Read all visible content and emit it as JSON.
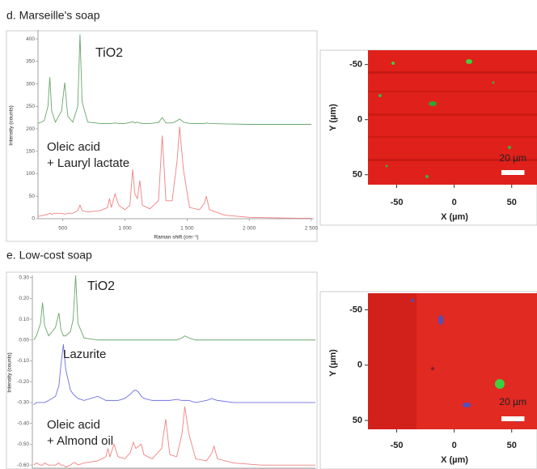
{
  "chart_data": [
    {
      "type": "line",
      "title": "d. Marseille's soap",
      "xlabel": "Raman shift (cm⁻¹)",
      "ylabel": "Intensity (counts)",
      "annotations": [
        "TiO2",
        "Oleic acid",
        "+ Lauryl lactate"
      ],
      "xlim": [
        300,
        2520
      ],
      "xticks": [
        500,
        {
          "value": 1000,
          "label": "1 000"
        },
        {
          "value": 1500,
          "label": "1 500"
        },
        {
          "value": 2000,
          "label": "2 000"
        },
        {
          "value": 2500,
          "label": "2 500"
        }
      ],
      "ylim": [
        0,
        420
      ],
      "yticks": [
        0,
        50,
        100,
        150,
        200,
        250,
        300,
        350,
        400
      ],
      "x": [
        300,
        350,
        380,
        395,
        410,
        440,
        490,
        515,
        540,
        580,
        620,
        638,
        655,
        700,
        800,
        860,
        875,
        890,
        920,
        950,
        1000,
        1040,
        1062,
        1080,
        1100,
        1120,
        1140,
        1200,
        1270,
        1300,
        1330,
        1380,
        1420,
        1440,
        1470,
        1520,
        1600,
        1640,
        1655,
        1680,
        1800,
        2000,
        2200,
        2400,
        2500
      ],
      "series": [
        {
          "color": "#6aa56a",
          "values": [
            212,
            218,
            250,
            315,
            240,
            215,
            240,
            303,
            228,
            215,
            250,
            410,
            260,
            215,
            212,
            212,
            212,
            212,
            213,
            212,
            212,
            214,
            216,
            213,
            215,
            213,
            212,
            212,
            214,
            225,
            213,
            213,
            218,
            222,
            215,
            212,
            212,
            212,
            213,
            212,
            211,
            210,
            210,
            210,
            210
          ]
        },
        {
          "color": "#f08080",
          "values": [
            5,
            8,
            10,
            12,
            10,
            12,
            12,
            10,
            12,
            12,
            18,
            30,
            18,
            15,
            18,
            25,
            45,
            25,
            55,
            30,
            20,
            30,
            110,
            55,
            45,
            85,
            30,
            22,
            40,
            185,
            40,
            40,
            130,
            205,
            110,
            25,
            20,
            35,
            50,
            20,
            8,
            3,
            2,
            1,
            1
          ]
        }
      ]
    },
    {
      "type": "map",
      "xlabel": "X (µm)",
      "ylabel": "Y (µm)",
      "xlim": [
        -75,
        72
      ],
      "xticks": [
        -50,
        0,
        50
      ],
      "ylim": [
        -63,
        59
      ],
      "yticks": [
        -50,
        0,
        50
      ],
      "scale_bar": {
        "value": 20,
        "label": "20 µm"
      }
    },
    {
      "type": "line",
      "title": "e. Low-cost soap",
      "ylabel": "Intensity (counts)",
      "annotations": [
        "TiO2",
        "Lazurite",
        "Oleic acid",
        "+ Almond oil"
      ],
      "xlim": [
        320,
        2400
      ],
      "ylim": [
        -0.615,
        0.31
      ],
      "yticks": [
        {
          "value": 0.3,
          "label": "0.30"
        },
        {
          "value": 0.2,
          "label": "0.20"
        },
        {
          "value": 0.1,
          "label": "0.10"
        },
        {
          "value": 0,
          "label": "0.00"
        },
        {
          "value": -0.1,
          "label": "-0.10"
        },
        {
          "value": -0.2,
          "label": "-0.20"
        },
        {
          "value": -0.3,
          "label": "-0.30"
        },
        {
          "value": -0.4,
          "label": "-0.40"
        },
        {
          "value": -0.5,
          "label": "-0.50"
        },
        {
          "value": -0.6,
          "label": "-0.60"
        }
      ],
      "x": [
        330,
        350,
        380,
        395,
        410,
        440,
        490,
        515,
        530,
        548,
        565,
        600,
        620,
        638,
        655,
        700,
        800,
        860,
        875,
        890,
        920,
        950,
        1000,
        1040,
        1062,
        1080,
        1100,
        1120,
        1140,
        1200,
        1270,
        1300,
        1330,
        1380,
        1420,
        1440,
        1470,
        1520,
        1600,
        1640,
        1655,
        1680,
        1800,
        2000,
        2200,
        2400
      ],
      "series": [
        {
          "color": "#6aa56a",
          "values": [
            0,
            0.02,
            0.08,
            0.18,
            0.07,
            0.02,
            0.06,
            0.13,
            0.05,
            0.02,
            0.02,
            0.04,
            0.1,
            0.31,
            0.08,
            0.01,
            0,
            0,
            0,
            0,
            0,
            0,
            0,
            0,
            0,
            0,
            0,
            0,
            0,
            0,
            0,
            0,
            0,
            0,
            0.01,
            0.02,
            0.01,
            0,
            0,
            0,
            0,
            0,
            0,
            0,
            0,
            0
          ]
        },
        {
          "color": "#7070e0",
          "values": [
            -0.31,
            -0.3,
            -0.3,
            -0.3,
            -0.3,
            -0.29,
            -0.27,
            -0.22,
            -0.12,
            -0.02,
            -0.14,
            -0.24,
            -0.26,
            -0.27,
            -0.28,
            -0.29,
            -0.27,
            -0.29,
            -0.29,
            -0.29,
            -0.29,
            -0.29,
            -0.28,
            -0.26,
            -0.245,
            -0.24,
            -0.25,
            -0.27,
            -0.28,
            -0.29,
            -0.29,
            -0.29,
            -0.29,
            -0.285,
            -0.29,
            -0.29,
            -0.29,
            -0.3,
            -0.29,
            -0.28,
            -0.285,
            -0.29,
            -0.3,
            -0.3,
            -0.3,
            -0.3
          ]
        },
        {
          "color": "#f08080",
          "values": [
            -0.6,
            -0.59,
            -0.6,
            -0.6,
            -0.59,
            -0.6,
            -0.6,
            -0.59,
            -0.6,
            -0.6,
            -0.61,
            -0.6,
            -0.59,
            -0.59,
            -0.6,
            -0.59,
            -0.58,
            -0.56,
            -0.52,
            -0.56,
            -0.5,
            -0.56,
            -0.57,
            -0.54,
            -0.49,
            -0.52,
            -0.51,
            -0.5,
            -0.55,
            -0.57,
            -0.52,
            -0.38,
            -0.55,
            -0.56,
            -0.45,
            -0.32,
            -0.45,
            -0.57,
            -0.58,
            -0.54,
            -0.51,
            -0.57,
            -0.59,
            -0.6,
            -0.6,
            -0.6
          ]
        }
      ]
    },
    {
      "type": "map",
      "xlabel": "X (µm)",
      "ylabel": "Y (µm)",
      "xlim": [
        -75,
        72
      ],
      "xticks": [
        -50,
        0,
        50
      ],
      "ylim": [
        -65,
        58
      ],
      "yticks": [
        -50,
        0,
        50
      ],
      "scale_bar": {
        "value": 20,
        "label": "20 µm"
      }
    }
  ]
}
